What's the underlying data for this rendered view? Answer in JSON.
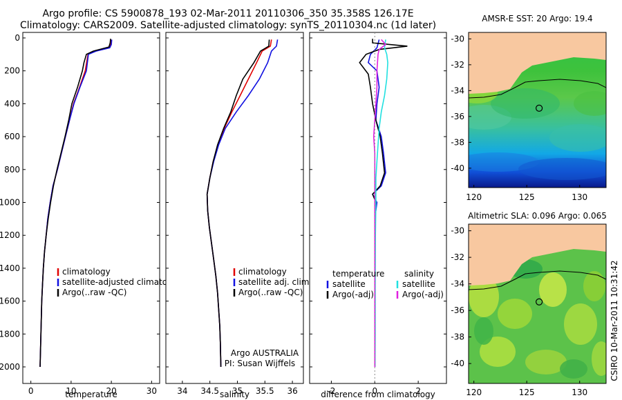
{
  "header": {
    "title_line1": "Argo profile: CS 5900878_193 02-Mar-2011 20110306_350 35.358S 126.17E",
    "title_line2": "Climatology: CARS2009. Satellite-adjusted climatology: synTS_20110304.nc (1d later)"
  },
  "credit": "CSIRO 10-Mar-2011 10:31:42",
  "colors": {
    "climatology": "#e00000",
    "satellite": "#1010e0",
    "argo": "#000000",
    "satellite_salinity": "#20e0e0",
    "argo_salinity": "#e020e0",
    "land": "#f8c8a0"
  },
  "chart_data": [
    {
      "type": "line",
      "xlabel": "temperature",
      "xticks": [
        "0",
        "10",
        "20",
        "30"
      ],
      "xlim": [
        -2,
        32
      ],
      "ylim": [
        2050,
        0
      ],
      "yticks": [
        "0",
        "200",
        "400",
        "600",
        "800",
        "1000",
        "1200",
        "1400",
        "1600",
        "1800",
        "2000"
      ],
      "legend": [
        "climatology",
        "satellite-adjusted climatology",
        "Argo(..raw -QC)"
      ],
      "series": [
        {
          "name": "climatology",
          "color": "#e00000",
          "points": [
            [
              19.9,
              10
            ],
            [
              19.8,
              40
            ],
            [
              19.5,
              60
            ],
            [
              16,
              80
            ],
            [
              14.2,
              100
            ],
            [
              13.5,
              200
            ],
            [
              12.1,
              300
            ],
            [
              10.6,
              400
            ],
            [
              9.6,
              500
            ],
            [
              8.6,
              600
            ],
            [
              7.6,
              700
            ],
            [
              6.6,
              800
            ],
            [
              5.5,
              900
            ],
            [
              4.8,
              1000
            ],
            [
              4.2,
              1100
            ],
            [
              3.8,
              1200
            ],
            [
              3.4,
              1300
            ],
            [
              3.1,
              1400
            ],
            [
              2.9,
              1500
            ],
            [
              2.7,
              1600
            ],
            [
              2.6,
              1700
            ],
            [
              2.5,
              1800
            ],
            [
              2.4,
              1900
            ],
            [
              2.3,
              2000
            ]
          ]
        },
        {
          "name": "satellite-adjusted climatology",
          "color": "#1010e0",
          "points": [
            [
              20.1,
              10
            ],
            [
              20.0,
              40
            ],
            [
              19.6,
              60
            ],
            [
              16.2,
              80
            ],
            [
              14.3,
              100
            ],
            [
              13.8,
              200
            ],
            [
              12.2,
              300
            ],
            [
              10.7,
              400
            ],
            [
              9.6,
              500
            ],
            [
              8.6,
              600
            ],
            [
              7.6,
              700
            ],
            [
              6.6,
              800
            ],
            [
              5.5,
              900
            ],
            [
              4.8,
              1000
            ],
            [
              4.2,
              1100
            ],
            [
              3.8,
              1200
            ],
            [
              3.4,
              1300
            ],
            [
              3.1,
              1400
            ],
            [
              2.9,
              1500
            ],
            [
              2.7,
              1600
            ],
            [
              2.6,
              1700
            ],
            [
              2.5,
              1800
            ],
            [
              2.4,
              1900
            ],
            [
              2.3,
              2000
            ]
          ]
        },
        {
          "name": "Argo(..raw -QC)",
          "color": "#000000",
          "points": [
            [
              19.8,
              5
            ],
            [
              19.7,
              30
            ],
            [
              19.4,
              55
            ],
            [
              15.5,
              80
            ],
            [
              13.8,
              100
            ],
            [
              13.2,
              150
            ],
            [
              12.8,
              200
            ],
            [
              11.6,
              300
            ],
            [
              10.2,
              400
            ],
            [
              9.4,
              500
            ],
            [
              8.5,
              600
            ],
            [
              7.5,
              700
            ],
            [
              6.5,
              800
            ],
            [
              5.6,
              900
            ],
            [
              4.9,
              1000
            ],
            [
              4.3,
              1100
            ],
            [
              3.8,
              1200
            ],
            [
              3.4,
              1300
            ],
            [
              3.1,
              1400
            ],
            [
              2.9,
              1500
            ],
            [
              2.7,
              1600
            ],
            [
              2.6,
              1700
            ],
            [
              2.5,
              1800
            ],
            [
              2.4,
              1900
            ],
            [
              2.3,
              2000
            ]
          ]
        }
      ]
    },
    {
      "type": "line",
      "xlabel": "salinity",
      "xticks": [
        "34",
        "34.5",
        "35",
        "35.5",
        "36"
      ],
      "xlim": [
        33.7,
        36.2
      ],
      "ylim": [
        2050,
        0
      ],
      "legend": [
        "climatology",
        "satellite adj. clim.",
        "Argo(..raw -QC)"
      ],
      "annotation": [
        "Argo AUSTRALIA",
        "PI: Susan Wijffels"
      ],
      "series": [
        {
          "name": "climatology",
          "color": "#e00000",
          "points": [
            [
              35.62,
              10
            ],
            [
              35.6,
              50
            ],
            [
              35.45,
              80
            ],
            [
              35.35,
              150
            ],
            [
              35.2,
              250
            ],
            [
              35.05,
              350
            ],
            [
              34.9,
              450
            ],
            [
              34.76,
              550
            ],
            [
              34.65,
              650
            ],
            [
              34.56,
              750
            ],
            [
              34.5,
              850
            ],
            [
              34.45,
              950
            ],
            [
              34.46,
              1050
            ],
            [
              34.49,
              1150
            ],
            [
              34.53,
              1250
            ],
            [
              34.57,
              1350
            ],
            [
              34.61,
              1450
            ],
            [
              34.64,
              1550
            ],
            [
              34.66,
              1650
            ],
            [
              34.68,
              1750
            ],
            [
              34.69,
              1850
            ],
            [
              34.7,
              2000
            ]
          ]
        },
        {
          "name": "satellite adj. clim.",
          "color": "#1010e0",
          "points": [
            [
              35.73,
              10
            ],
            [
              35.71,
              50
            ],
            [
              35.62,
              80
            ],
            [
              35.55,
              150
            ],
            [
              35.4,
              250
            ],
            [
              35.2,
              350
            ],
            [
              34.98,
              450
            ],
            [
              34.78,
              550
            ],
            [
              34.66,
              650
            ],
            [
              34.57,
              750
            ],
            [
              34.5,
              850
            ],
            [
              34.45,
              950
            ],
            [
              34.46,
              1050
            ],
            [
              34.49,
              1150
            ],
            [
              34.53,
              1250
            ],
            [
              34.57,
              1350
            ],
            [
              34.61,
              1450
            ],
            [
              34.64,
              1550
            ],
            [
              34.66,
              1650
            ],
            [
              34.68,
              1750
            ],
            [
              34.69,
              1850
            ],
            [
              34.7,
              2000
            ]
          ]
        },
        {
          "name": "Argo(..raw -QC)",
          "color": "#000000",
          "points": [
            [
              35.58,
              10
            ],
            [
              35.57,
              50
            ],
            [
              35.42,
              80
            ],
            [
              35.3,
              150
            ],
            [
              35.1,
              250
            ],
            [
              34.98,
              350
            ],
            [
              34.88,
              450
            ],
            [
              34.75,
              550
            ],
            [
              34.64,
              650
            ],
            [
              34.56,
              750
            ],
            [
              34.5,
              850
            ],
            [
              34.45,
              950
            ],
            [
              34.46,
              1050
            ],
            [
              34.49,
              1150
            ],
            [
              34.53,
              1250
            ],
            [
              34.57,
              1350
            ],
            [
              34.61,
              1450
            ],
            [
              34.64,
              1550
            ],
            [
              34.66,
              1650
            ],
            [
              34.68,
              1750
            ],
            [
              34.69,
              1850
            ],
            [
              34.7,
              2000
            ]
          ]
        }
      ]
    },
    {
      "type": "line",
      "xlabel": "difference from climatology",
      "xticks": [
        "-2",
        "0",
        "2"
      ],
      "xlim": [
        -3,
        3.3
      ],
      "ylim": [
        2050,
        0
      ],
      "legend_columns": [
        {
          "header": "temperature",
          "items": [
            "satellite",
            "Argo(-adj)"
          ]
        },
        {
          "header": "salinity",
          "items": [
            "satellite",
            "Argo(-adj)"
          ]
        }
      ],
      "series": [
        {
          "name": "temperature satellite",
          "color": "#1010e0",
          "points": [
            [
              0.2,
              10
            ],
            [
              0.1,
              60
            ],
            [
              -0.2,
              100
            ],
            [
              -0.3,
              150
            ],
            [
              0.1,
              200
            ],
            [
              0.2,
              300
            ],
            [
              0.1,
              400
            ],
            [
              0.05,
              500
            ],
            [
              0.3,
              600
            ],
            [
              0.4,
              700
            ],
            [
              0.5,
              820
            ],
            [
              0.3,
              900
            ],
            [
              -0.1,
              950
            ],
            [
              0.1,
              1000
            ],
            [
              0,
              1100
            ],
            [
              0,
              1300
            ],
            [
              0,
              1600
            ],
            [
              0,
              2000
            ]
          ]
        },
        {
          "name": "temperature Argo(-adj)",
          "color": "#000000",
          "points": [
            [
              -0.1,
              5
            ],
            [
              -0.1,
              30
            ],
            [
              1.5,
              50
            ],
            [
              0.2,
              70
            ],
            [
              -0.4,
              100
            ],
            [
              -0.7,
              150
            ],
            [
              -0.3,
              220
            ],
            [
              -0.2,
              300
            ],
            [
              -0.1,
              400
            ],
            [
              0.05,
              500
            ],
            [
              0.25,
              600
            ],
            [
              0.35,
              700
            ],
            [
              0.45,
              820
            ],
            [
              0.25,
              900
            ],
            [
              -0.1,
              950
            ],
            [
              0.05,
              1000
            ],
            [
              0,
              1100
            ],
            [
              0,
              1300
            ],
            [
              0,
              1600
            ],
            [
              0,
              2000
            ]
          ]
        },
        {
          "name": "salinity satellite",
          "color": "#20e0e0",
          "points": [
            [
              0.5,
              10
            ],
            [
              0.45,
              60
            ],
            [
              0.55,
              100
            ],
            [
              0.6,
              150
            ],
            [
              0.55,
              250
            ],
            [
              0.45,
              350
            ],
            [
              0.3,
              450
            ],
            [
              0.2,
              550
            ],
            [
              0.15,
              650
            ],
            [
              0.1,
              750
            ],
            [
              0.05,
              850
            ],
            [
              0.05,
              1000
            ],
            [
              0.03,
              1200
            ],
            [
              0.02,
              1500
            ],
            [
              0.02,
              1800
            ],
            [
              0.01,
              2000
            ]
          ]
        },
        {
          "name": "salinity Argo(-adj)",
          "color": "#e020e0",
          "points": [
            [
              0.3,
              10
            ],
            [
              0.5,
              40
            ],
            [
              0.2,
              70
            ],
            [
              0.15,
              100
            ],
            [
              0.1,
              200
            ],
            [
              0.1,
              300
            ],
            [
              0.05,
              400
            ],
            [
              0.0,
              500
            ],
            [
              -0.05,
              600
            ],
            [
              0.0,
              700
            ],
            [
              0.0,
              800
            ],
            [
              0.0,
              1000
            ],
            [
              0.0,
              1300
            ],
            [
              0.0,
              1600
            ],
            [
              0.0,
              2000
            ]
          ]
        }
      ]
    },
    {
      "type": "heatmap",
      "title": "AMSR-E SST: 20 Argo: 19.4",
      "xticks": [
        "120",
        "125",
        "130"
      ],
      "xlim": [
        119.5,
        132.5
      ],
      "yticks": [
        "-30",
        "-32",
        "-34",
        "-36",
        "-38",
        "-40"
      ],
      "ylim": [
        -41.5,
        -29.5
      ],
      "profile_position": [
        126.17,
        -35.358
      ]
    },
    {
      "type": "heatmap",
      "title": "Altimetric SLA: 0.096 Argo: 0.065",
      "xticks": [
        "120",
        "125",
        "130"
      ],
      "xlim": [
        119.5,
        132.5
      ],
      "yticks": [
        "-30",
        "-32",
        "-34",
        "-36",
        "-38",
        "-40"
      ],
      "ylim": [
        -41.5,
        -29.5
      ],
      "profile_position": [
        126.17,
        -35.358
      ]
    }
  ]
}
